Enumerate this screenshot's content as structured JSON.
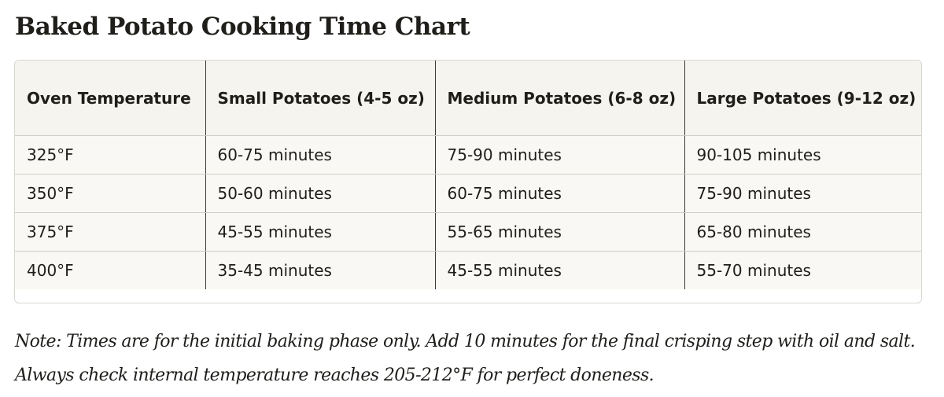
{
  "title": "Baked Potato Cooking Time Chart",
  "table": {
    "headers": [
      "Oven Temperature",
      "Small Potatoes (4-5 oz)",
      "Medium Potatoes (6-8 oz)",
      "Large Potatoes (9-12 oz)"
    ],
    "rows": [
      [
        "325°F",
        "60-75 minutes",
        "75-90 minutes",
        "90-105 minutes"
      ],
      [
        "350°F",
        "50-60 minutes",
        "60-75 minutes",
        "75-90 minutes"
      ],
      [
        "375°F",
        "45-55 minutes",
        "55-65 minutes",
        "65-80 minutes"
      ],
      [
        "400°F",
        "35-45 minutes",
        "45-55 minutes",
        "55-70 minutes"
      ]
    ]
  },
  "note": "Note: Times are for the initial baking phase only. Add 10 minutes for the final crisping step with oil and salt. Always check internal temperature reaches 205-212°F for perfect doneness."
}
